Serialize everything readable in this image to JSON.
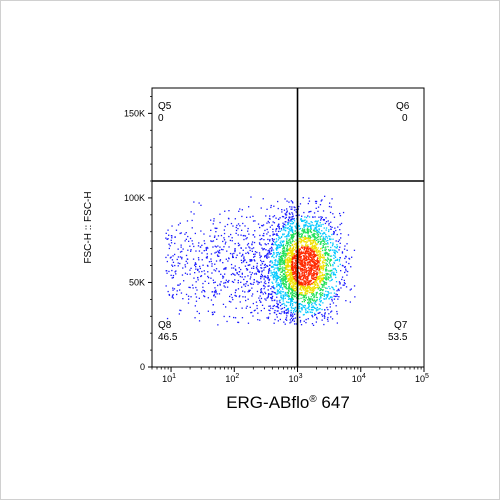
{
  "chart_data": {
    "type": "scatter",
    "style": "flow-cytometry density dot plot with quadrant gate",
    "x_axis": {
      "label_main": "ERG-ABflo",
      "label_super": "®",
      "label_suffix": " 647",
      "scale": "log",
      "xlim": [
        5,
        100000
      ],
      "ticks": [
        {
          "value": 10,
          "base": "10",
          "exp": "1"
        },
        {
          "value": 100,
          "base": "10",
          "exp": "2"
        },
        {
          "value": 1000,
          "base": "10",
          "exp": "3"
        },
        {
          "value": 10000,
          "base": "10",
          "exp": "4"
        },
        {
          "value": 100000,
          "base": "10",
          "exp": "5"
        }
      ]
    },
    "y_axis": {
      "label": "FSC-H :: FSC-H",
      "scale": "linear",
      "ylim": [
        0,
        165000
      ],
      "ticks": [
        {
          "value": 0,
          "label": "0"
        },
        {
          "value": 50000,
          "label": "50K"
        },
        {
          "value": 100000,
          "label": "100K"
        },
        {
          "value": 150000,
          "label": "150K"
        }
      ]
    },
    "gates": {
      "x_threshold": 1000,
      "y_threshold": 110000
    },
    "quadrants": [
      {
        "name": "Q5",
        "value": "0",
        "position": "top-left"
      },
      {
        "name": "Q6",
        "value": "0",
        "position": "top-right"
      },
      {
        "name": "Q7",
        "value": "53.5",
        "position": "bottom-right"
      },
      {
        "name": "Q8",
        "value": "46.5",
        "position": "bottom-left"
      }
    ],
    "population": {
      "center_x": 1300,
      "center_y": 60000,
      "x_log_sd": 0.28,
      "y_sd": 16000,
      "x_range": [
        8,
        8000
      ],
      "y_range": [
        25000,
        102000
      ]
    },
    "colors": {
      "low": "#1a1aff",
      "mid": "#00c8ff",
      "mid2": "#22e05a",
      "high": "#f0e000",
      "peak": "#ff2a00"
    }
  }
}
